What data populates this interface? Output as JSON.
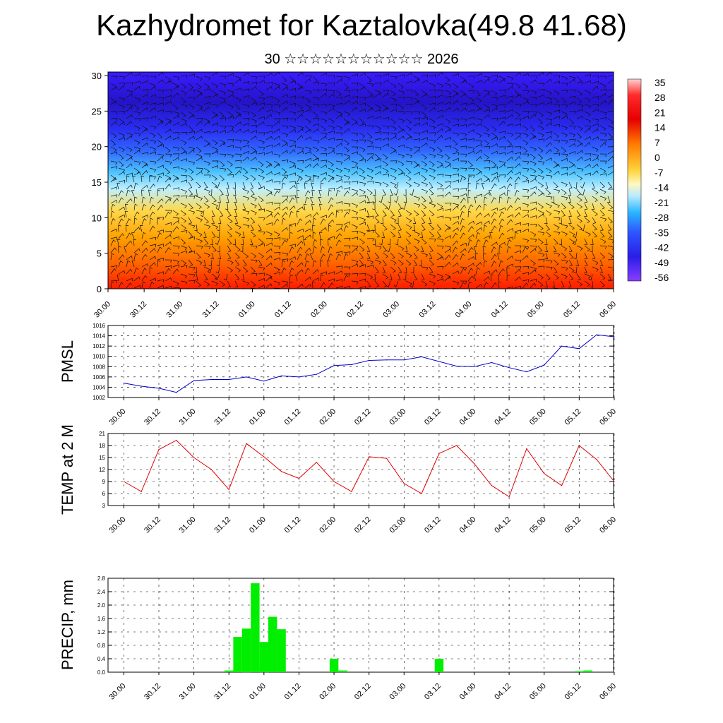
{
  "title": "Kazhydromet for Kaztalovka(49.8 41.68)",
  "subtitle": "30 ☆☆☆☆☆☆☆☆☆☆☆ 2026",
  "time_labels": [
    "30.00",
    "30.12",
    "31.00",
    "31.12",
    "01.00",
    "01.12",
    "02.00",
    "02.12",
    "03.00",
    "03.12",
    "04.00",
    "04.12",
    "05.00",
    "05.12",
    "06.00"
  ],
  "colorbar_labels": [
    "35",
    "28",
    "21",
    "14",
    "7",
    "0",
    "-7",
    "-14",
    "-21",
    "-28",
    "-35",
    "-42",
    "-49",
    "-56"
  ],
  "chart_data": [
    {
      "type": "heatmap",
      "title": "Kazhydromet for Kaztalovka(49.8 41.68)",
      "subtitle": "30 ☆☆☆☆☆☆☆☆☆☆☆ 2026",
      "y_ticks": [
        0,
        5,
        10,
        15,
        20,
        25,
        30
      ],
      "ylim": [
        0,
        30.5
      ],
      "color_scale_ticks": [
        35,
        28,
        21,
        14,
        7,
        0,
        -7,
        -14,
        -21,
        -28,
        -35,
        -42,
        -49,
        -56
      ],
      "x": [
        "30.00",
        "30.12",
        "31.00",
        "31.12",
        "01.00",
        "01.12",
        "02.00",
        "02.12",
        "03.00",
        "03.12",
        "04.00",
        "04.12",
        "05.00",
        "05.12",
        "06.00"
      ],
      "overlay": "wind barbs"
    },
    {
      "type": "line",
      "ylabel": "PMSL",
      "ylim": [
        1002,
        1016
      ],
      "y_ticks": [
        1002,
        1004,
        1006,
        1008,
        1010,
        1012,
        1014,
        1016
      ],
      "color": "#0000cc",
      "x": [
        "30.00",
        "30.06",
        "30.12",
        "30.18",
        "31.00",
        "31.06",
        "31.12",
        "31.18",
        "01.00",
        "01.06",
        "01.12",
        "01.18",
        "02.00",
        "02.06",
        "02.12",
        "02.18",
        "03.00",
        "03.06",
        "03.12",
        "03.18",
        "04.00",
        "04.06",
        "04.12",
        "04.18",
        "05.00",
        "05.06",
        "05.12",
        "05.18",
        "06.00"
      ],
      "values": [
        1004.8,
        1004.2,
        1003.8,
        1003.0,
        1005.3,
        1005.5,
        1005.5,
        1006.0,
        1005.2,
        1006.2,
        1006.0,
        1006.5,
        1008.2,
        1008.4,
        1009.2,
        1009.3,
        1009.3,
        1009.9,
        1009.0,
        1008.1,
        1008.0,
        1008.8,
        1007.8,
        1007.0,
        1008.3,
        1012.0,
        1011.5,
        1014.2,
        1013.8
      ]
    },
    {
      "type": "line",
      "ylabel": "TEMP at 2 M",
      "ylim": [
        3,
        21
      ],
      "y_ticks": [
        3,
        6,
        9,
        12,
        15,
        18,
        21
      ],
      "color": "#dd0000",
      "x": [
        "30.00",
        "30.06",
        "30.12",
        "30.18",
        "31.00",
        "31.06",
        "31.12",
        "31.18",
        "01.00",
        "01.06",
        "01.12",
        "01.18",
        "02.00",
        "02.06",
        "02.12",
        "02.18",
        "03.00",
        "03.06",
        "03.12",
        "03.18",
        "04.00",
        "04.06",
        "04.12",
        "04.18",
        "05.00",
        "05.06",
        "05.12",
        "05.18",
        "06.00"
      ],
      "values": [
        9.0,
        6.5,
        17.0,
        19.3,
        15.0,
        12.0,
        7.0,
        18.5,
        15.2,
        11.5,
        9.8,
        13.8,
        9.0,
        6.5,
        15.2,
        14.8,
        8.5,
        6.0,
        16.0,
        18.0,
        13.5,
        8.0,
        5.2,
        17.2,
        11.0,
        8.0,
        18.0,
        14.5,
        9.0
      ]
    },
    {
      "type": "bar",
      "ylabel": "PRECIP, mm",
      "ylim": [
        0,
        2.8
      ],
      "y_ticks": [
        "0.0",
        "0.4",
        "0.8",
        "1.2",
        "1.6",
        "2.0",
        "2.4",
        "2.8"
      ],
      "color": "#00ee00",
      "x": [
        "31.12",
        "31.15",
        "31.18",
        "31.21",
        "01.00",
        "01.03",
        "01.06",
        "01.09",
        "02.00",
        "02.03",
        "03.12",
        "03.15",
        "05.12",
        "05.15"
      ],
      "values": [
        0.05,
        1.05,
        1.3,
        2.65,
        0.9,
        1.65,
        1.28,
        0.0,
        0.4,
        0.05,
        0.4,
        0.0,
        0.03,
        0.05
      ]
    }
  ]
}
